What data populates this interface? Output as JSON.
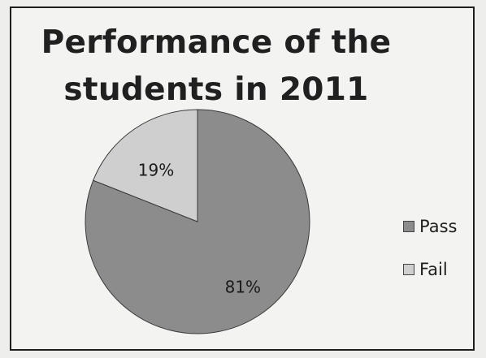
{
  "chart_data": {
    "type": "pie",
    "title": "Performance of the students in 2011",
    "title_lines": [
      "Performance of the",
      "students in 2011"
    ],
    "slices": [
      {
        "label": "Pass",
        "value": 81,
        "display": "81%",
        "color": "#8c8c8c"
      },
      {
        "label": "Fail",
        "value": 19,
        "display": "19%",
        "color": "#cfcfcf"
      }
    ],
    "legend_position": "right"
  }
}
